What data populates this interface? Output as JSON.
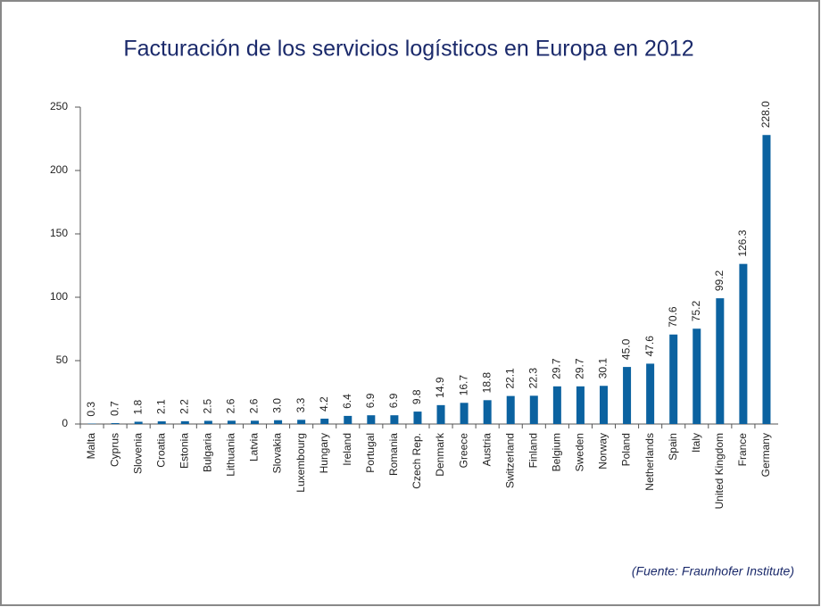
{
  "chart_data": {
    "type": "bar",
    "title": "Facturación de los servicios logísticos en Europa en 2012",
    "source": "(Fuente: Fraunhofer Institute)",
    "categories": [
      "Malta",
      "Cyprus",
      "Slovenia",
      "Croatia",
      "Estonia",
      "Bulgaria",
      "Lithuania",
      "Latvia",
      "Slovakia",
      "Luxembourg",
      "Hungary",
      "Ireland",
      "Portugal",
      "Romania",
      "Czech Rep.",
      "Denmark",
      "Greece",
      "Austria",
      "Switzerland",
      "Finland",
      "Belgium",
      "Sweden",
      "Norway",
      "Poland",
      "Netherlands",
      "Spain",
      "Italy",
      "United Kingdom",
      "France",
      "Germany"
    ],
    "values": [
      0.3,
      0.7,
      1.8,
      2.1,
      2.2,
      2.5,
      2.6,
      2.6,
      3.0,
      3.3,
      4.2,
      6.4,
      6.9,
      6.9,
      9.8,
      14.9,
      16.7,
      18.8,
      22.1,
      22.3,
      29.7,
      29.7,
      30.1,
      45.0,
      47.6,
      70.6,
      75.2,
      99.2,
      126.3,
      228.0
    ],
    "value_labels": [
      "0.3",
      "0.7",
      "1.8",
      "2.1",
      "2.2",
      "2.5",
      "2.6",
      "2.6",
      "3.0",
      "3.3",
      "4.2",
      "6.4",
      "6.9",
      "6.9",
      "9.8",
      "14.9",
      "16.7",
      "18.8",
      "22.1",
      "22.3",
      "29.7",
      "29.7",
      "30.1",
      "45.0",
      "47.6",
      "70.6",
      "75.2",
      "99.2",
      "126.3",
      "228.0"
    ],
    "color": "#0b62a0",
    "ylim": [
      0,
      250
    ],
    "yticks": [
      0,
      50,
      100,
      150,
      200,
      250
    ],
    "grid": false
  }
}
